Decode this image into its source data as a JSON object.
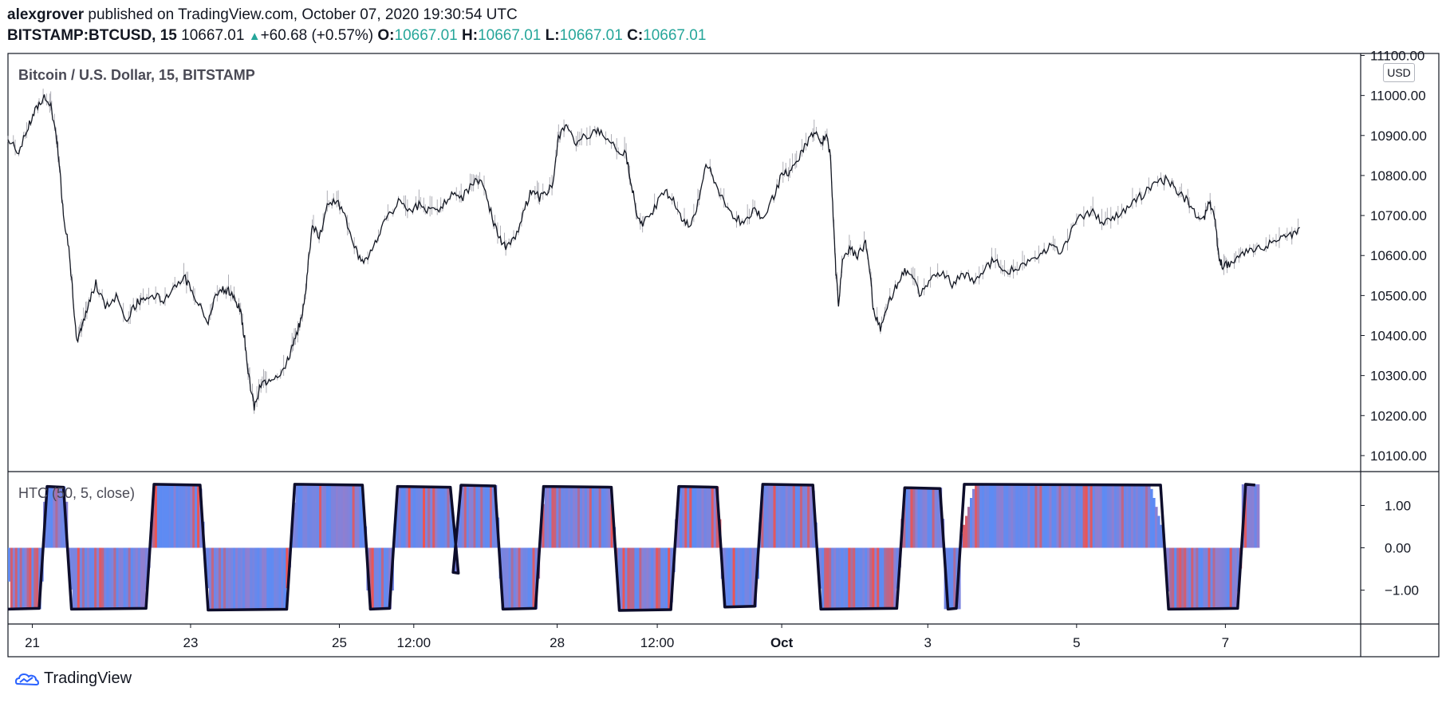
{
  "header": {
    "author": "alexgrover",
    "published_text": " published on TradingView.com, October 07, 2020 19:30:54 UTC",
    "symbol": "BITSTAMP:BTCUSD, 15",
    "last_price": "10667.01",
    "change": "+60.68 (+0.57%)",
    "o_label": "O:",
    "o_value": "10667.01",
    "h_label": "H:",
    "h_value": "10667.01",
    "l_label": "L:",
    "l_value": "10667.01",
    "c_label": "C:",
    "c_value": "10667.01"
  },
  "price_pane": {
    "title": "Bitcoin / U.S. Dollar, 15, BITSTAMP",
    "currency_badge": "USD"
  },
  "indicator_pane": {
    "title": "HTC (50, 5, close)"
  },
  "footer": {
    "brand": "TradingView"
  },
  "colors": {
    "price_line": "#131722",
    "hist_blue": "#5b8cf5",
    "hist_red": "#ef5350",
    "hist_mid": "#8f7fd0",
    "osc_line": "#0d0d2b",
    "brand_blue": "#2962ff"
  },
  "chart_data": [
    {
      "type": "line",
      "title": "Bitcoin / U.S. Dollar, 15, BITSTAMP",
      "y_axis_ticks": [
        "11100.00",
        "11000.00",
        "10900.00",
        "10800.00",
        "10700.00",
        "10600.00",
        "10500.00",
        "10400.00",
        "10300.00",
        "10200.00",
        "10100.00"
      ],
      "ylim": [
        10060,
        11105
      ],
      "x_axis_ticks": [
        "21",
        "23",
        "25",
        "12:00",
        "28",
        "12:00",
        "Oct",
        "3",
        "5",
        "7"
      ],
      "x_tick_fraction": [
        0.018,
        0.135,
        0.245,
        0.3,
        0.406,
        0.48,
        0.572,
        0.68,
        0.79,
        0.9
      ],
      "series": [
        {
          "values": [
            [
              0.0,
              10890
            ],
            [
              0.008,
              10860
            ],
            [
              0.015,
              10920
            ],
            [
              0.02,
              10960
            ],
            [
              0.026,
              10995
            ],
            [
              0.031,
              10980
            ],
            [
              0.035,
              10920
            ],
            [
              0.038,
              10830
            ],
            [
              0.041,
              10700
            ],
            [
              0.045,
              10620
            ],
            [
              0.048,
              10500
            ],
            [
              0.051,
              10380
            ],
            [
              0.055,
              10420
            ],
            [
              0.06,
              10480
            ],
            [
              0.065,
              10530
            ],
            [
              0.072,
              10470
            ],
            [
              0.08,
              10500
            ],
            [
              0.088,
              10440
            ],
            [
              0.095,
              10480
            ],
            [
              0.1,
              10490
            ],
            [
              0.108,
              10500
            ],
            [
              0.115,
              10490
            ],
            [
              0.122,
              10520
            ],
            [
              0.13,
              10550
            ],
            [
              0.136,
              10510
            ],
            [
              0.142,
              10480
            ],
            [
              0.148,
              10430
            ],
            [
              0.153,
              10500
            ],
            [
              0.158,
              10520
            ],
            [
              0.163,
              10510
            ],
            [
              0.168,
              10490
            ],
            [
              0.172,
              10460
            ],
            [
              0.175,
              10390
            ],
            [
              0.178,
              10300
            ],
            [
              0.182,
              10220
            ],
            [
              0.186,
              10270
            ],
            [
              0.192,
              10290
            ],
            [
              0.198,
              10300
            ],
            [
              0.205,
              10320
            ],
            [
              0.21,
              10370
            ],
            [
              0.215,
              10420
            ],
            [
              0.219,
              10480
            ],
            [
              0.222,
              10580
            ],
            [
              0.225,
              10680
            ],
            [
              0.23,
              10640
            ],
            [
              0.236,
              10720
            ],
            [
              0.243,
              10740
            ],
            [
              0.25,
              10690
            ],
            [
              0.256,
              10620
            ],
            [
              0.262,
              10580
            ],
            [
              0.268,
              10610
            ],
            [
              0.275,
              10660
            ],
            [
              0.282,
              10700
            ],
            [
              0.29,
              10740
            ],
            [
              0.298,
              10710
            ],
            [
              0.305,
              10730
            ],
            [
              0.312,
              10710
            ],
            [
              0.32,
              10720
            ],
            [
              0.328,
              10750
            ],
            [
              0.335,
              10740
            ],
            [
              0.343,
              10780
            ],
            [
              0.35,
              10790
            ],
            [
              0.356,
              10720
            ],
            [
              0.362,
              10650
            ],
            [
              0.368,
              10620
            ],
            [
              0.375,
              10640
            ],
            [
              0.382,
              10720
            ],
            [
              0.388,
              10770
            ],
            [
              0.393,
              10740
            ],
            [
              0.398,
              10760
            ],
            [
              0.403,
              10780
            ],
            [
              0.407,
              10900
            ],
            [
              0.413,
              10920
            ],
            [
              0.42,
              10880
            ],
            [
              0.428,
              10900
            ],
            [
              0.435,
              10910
            ],
            [
              0.442,
              10900
            ],
            [
              0.45,
              10870
            ],
            [
              0.457,
              10850
            ],
            [
              0.461,
              10780
            ],
            [
              0.465,
              10700
            ],
            [
              0.47,
              10680
            ],
            [
              0.478,
              10720
            ],
            [
              0.486,
              10760
            ],
            [
              0.492,
              10740
            ],
            [
              0.498,
              10690
            ],
            [
              0.504,
              10670
            ],
            [
              0.51,
              10730
            ],
            [
              0.516,
              10830
            ],
            [
              0.522,
              10790
            ],
            [
              0.528,
              10740
            ],
            [
              0.536,
              10700
            ],
            [
              0.544,
              10680
            ],
            [
              0.552,
              10720
            ],
            [
              0.558,
              10690
            ],
            [
              0.565,
              10740
            ],
            [
              0.572,
              10800
            ],
            [
              0.578,
              10810
            ],
            [
              0.584,
              10840
            ],
            [
              0.59,
              10880
            ],
            [
              0.596,
              10910
            ],
            [
              0.601,
              10880
            ],
            [
              0.605,
              10900
            ],
            [
              0.608,
              10850
            ],
            [
              0.61,
              10700
            ],
            [
              0.612,
              10560
            ],
            [
              0.614,
              10480
            ],
            [
              0.617,
              10580
            ],
            [
              0.622,
              10620
            ],
            [
              0.628,
              10600
            ],
            [
              0.634,
              10630
            ],
            [
              0.637,
              10560
            ],
            [
              0.64,
              10460
            ],
            [
              0.645,
              10420
            ],
            [
              0.65,
              10470
            ],
            [
              0.656,
              10520
            ],
            [
              0.662,
              10560
            ],
            [
              0.668,
              10550
            ],
            [
              0.675,
              10500
            ],
            [
              0.682,
              10550
            ],
            [
              0.69,
              10560
            ],
            [
              0.698,
              10530
            ],
            [
              0.706,
              10550
            ],
            [
              0.714,
              10540
            ],
            [
              0.722,
              10570
            ],
            [
              0.73,
              10590
            ],
            [
              0.738,
              10560
            ],
            [
              0.746,
              10570
            ],
            [
              0.754,
              10580
            ],
            [
              0.762,
              10600
            ],
            [
              0.77,
              10620
            ],
            [
              0.778,
              10610
            ],
            [
              0.786,
              10660
            ],
            [
              0.794,
              10700
            ],
            [
              0.802,
              10710
            ],
            [
              0.81,
              10680
            ],
            [
              0.818,
              10700
            ],
            [
              0.826,
              10710
            ],
            [
              0.834,
              10740
            ],
            [
              0.842,
              10760
            ],
            [
              0.85,
              10780
            ],
            [
              0.857,
              10790
            ],
            [
              0.864,
              10760
            ],
            [
              0.871,
              10740
            ],
            [
              0.878,
              10700
            ],
            [
              0.884,
              10690
            ],
            [
              0.888,
              10730
            ],
            [
              0.892,
              10700
            ],
            [
              0.895,
              10600
            ],
            [
              0.898,
              10570
            ],
            [
              0.903,
              10580
            ],
            [
              0.91,
              10600
            ],
            [
              0.918,
              10610
            ],
            [
              0.926,
              10620
            ],
            [
              0.934,
              10630
            ],
            [
              0.941,
              10640
            ],
            [
              0.948,
              10650
            ],
            [
              0.955,
              10670
            ]
          ]
        }
      ]
    },
    {
      "type": "area",
      "title": "HTC (50, 5, close)",
      "y_axis_ticks": [
        "1.00",
        "0.00",
        "−1.00"
      ],
      "ylim": [
        -1.8,
        1.8
      ],
      "x_axis_ticks": [
        "21",
        "23",
        "25",
        "12:00",
        "28",
        "12:00",
        "Oct",
        "3",
        "5",
        "7"
      ],
      "regimes": [
        {
          "from": 0.0,
          "to": 0.026,
          "value": -1.45
        },
        {
          "from": 0.026,
          "to": 0.044,
          "value": 1.45
        },
        {
          "from": 0.044,
          "to": 0.105,
          "value": -1.45
        },
        {
          "from": 0.105,
          "to": 0.145,
          "value": 1.5
        },
        {
          "from": 0.145,
          "to": 0.209,
          "value": -1.47
        },
        {
          "from": 0.209,
          "to": 0.265,
          "value": 1.5
        },
        {
          "from": 0.265,
          "to": 0.285,
          "value": -1.45
        },
        {
          "from": 0.285,
          "to": 0.33,
          "value": 1.45
        },
        {
          "from": 0.33,
          "to": 0.332,
          "value": -0.6
        },
        {
          "from": 0.332,
          "to": 0.363,
          "value": 1.48
        },
        {
          "from": 0.363,
          "to": 0.393,
          "value": -1.45
        },
        {
          "from": 0.393,
          "to": 0.449,
          "value": 1.45
        },
        {
          "from": 0.449,
          "to": 0.493,
          "value": -1.48
        },
        {
          "from": 0.493,
          "to": 0.527,
          "value": 1.45
        },
        {
          "from": 0.527,
          "to": 0.555,
          "value": -1.4
        },
        {
          "from": 0.555,
          "to": 0.598,
          "value": 1.5
        },
        {
          "from": 0.598,
          "to": 0.66,
          "value": -1.45
        },
        {
          "from": 0.66,
          "to": 0.692,
          "value": 1.42
        },
        {
          "from": 0.692,
          "to": 0.704,
          "value": -1.45
        },
        {
          "from": 0.704,
          "to": 0.855,
          "value": 1.5
        },
        {
          "from": 0.855,
          "to": 0.912,
          "value": -1.45
        },
        {
          "from": 0.912,
          "to": 0.925,
          "value": 1.5
        }
      ]
    }
  ]
}
